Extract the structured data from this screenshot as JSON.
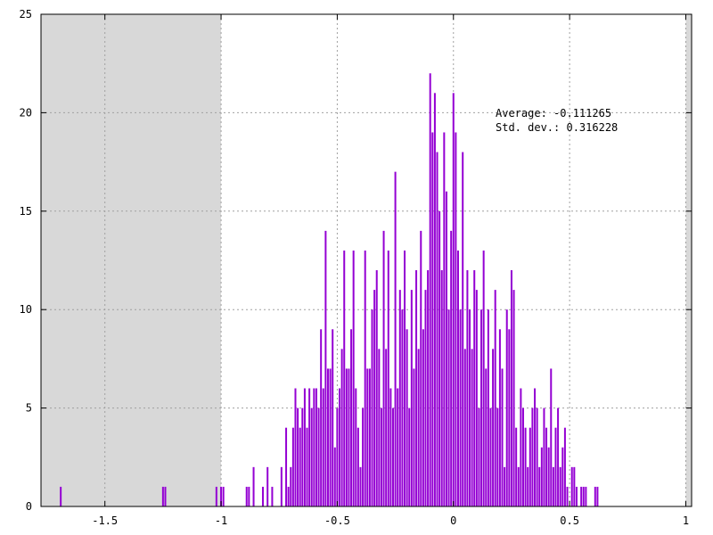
{
  "chart_data": {
    "type": "bar",
    "title": "",
    "xlabel": "",
    "ylabel": "",
    "xlim": [
      -1.775,
      1.025
    ],
    "ylim": [
      0,
      25
    ],
    "x_ticks": [
      -1.5,
      -1,
      -0.5,
      0,
      0.5,
      1
    ],
    "x_tick_labels": [
      "-1.5",
      "-1",
      "-0.5",
      "0",
      "0.5",
      "1"
    ],
    "y_ticks": [
      0,
      5,
      10,
      15,
      20,
      25
    ],
    "y_tick_labels": [
      "0",
      "5",
      "10",
      "15",
      "20",
      "25"
    ],
    "grid": true,
    "bin_width": 0.01,
    "shaded_ranges": [
      [
        -1.775,
        -1.0
      ],
      [
        1.0,
        1.025
      ]
    ],
    "shade_color": "#d8d8d8",
    "bar_color": "#9400d3",
    "annotations": [
      "Average: -0.111265",
      "Std. dev.: 0.316228"
    ],
    "bins": [
      {
        "x": -1.69,
        "y": 1
      },
      {
        "x": -1.25,
        "y": 1
      },
      {
        "x": -1.24,
        "y": 1
      },
      {
        "x": -1.02,
        "y": 1
      },
      {
        "x": -1.0,
        "y": 1
      },
      {
        "x": -0.99,
        "y": 1
      },
      {
        "x": -0.89,
        "y": 1
      },
      {
        "x": -0.88,
        "y": 1
      },
      {
        "x": -0.86,
        "y": 2
      },
      {
        "x": -0.82,
        "y": 1
      },
      {
        "x": -0.8,
        "y": 2
      },
      {
        "x": -0.78,
        "y": 1
      },
      {
        "x": -0.74,
        "y": 2
      },
      {
        "x": -0.72,
        "y": 4
      },
      {
        "x": -0.71,
        "y": 1
      },
      {
        "x": -0.7,
        "y": 2
      },
      {
        "x": -0.69,
        "y": 4
      },
      {
        "x": -0.68,
        "y": 6
      },
      {
        "x": -0.67,
        "y": 5
      },
      {
        "x": -0.66,
        "y": 4
      },
      {
        "x": -0.65,
        "y": 5
      },
      {
        "x": -0.64,
        "y": 6
      },
      {
        "x": -0.63,
        "y": 4
      },
      {
        "x": -0.62,
        "y": 6
      },
      {
        "x": -0.61,
        "y": 5
      },
      {
        "x": -0.6,
        "y": 6
      },
      {
        "x": -0.59,
        "y": 6
      },
      {
        "x": -0.58,
        "y": 5
      },
      {
        "x": -0.57,
        "y": 9
      },
      {
        "x": -0.56,
        "y": 6
      },
      {
        "x": -0.55,
        "y": 14
      },
      {
        "x": -0.54,
        "y": 7
      },
      {
        "x": -0.53,
        "y": 7
      },
      {
        "x": -0.52,
        "y": 9
      },
      {
        "x": -0.51,
        "y": 3
      },
      {
        "x": -0.5,
        "y": 5
      },
      {
        "x": -0.49,
        "y": 6
      },
      {
        "x": -0.48,
        "y": 8
      },
      {
        "x": -0.47,
        "y": 13
      },
      {
        "x": -0.46,
        "y": 7
      },
      {
        "x": -0.45,
        "y": 7
      },
      {
        "x": -0.44,
        "y": 9
      },
      {
        "x": -0.43,
        "y": 13
      },
      {
        "x": -0.42,
        "y": 6
      },
      {
        "x": -0.41,
        "y": 4
      },
      {
        "x": -0.4,
        "y": 2
      },
      {
        "x": -0.39,
        "y": 5
      },
      {
        "x": -0.38,
        "y": 13
      },
      {
        "x": -0.37,
        "y": 7
      },
      {
        "x": -0.36,
        "y": 7
      },
      {
        "x": -0.35,
        "y": 10
      },
      {
        "x": -0.34,
        "y": 11
      },
      {
        "x": -0.33,
        "y": 12
      },
      {
        "x": -0.32,
        "y": 8
      },
      {
        "x": -0.31,
        "y": 5
      },
      {
        "x": -0.3,
        "y": 14
      },
      {
        "x": -0.29,
        "y": 8
      },
      {
        "x": -0.28,
        "y": 13
      },
      {
        "x": -0.27,
        "y": 6
      },
      {
        "x": -0.26,
        "y": 5
      },
      {
        "x": -0.25,
        "y": 17
      },
      {
        "x": -0.24,
        "y": 6
      },
      {
        "x": -0.23,
        "y": 11
      },
      {
        "x": -0.22,
        "y": 10
      },
      {
        "x": -0.21,
        "y": 13
      },
      {
        "x": -0.2,
        "y": 9
      },
      {
        "x": -0.19,
        "y": 5
      },
      {
        "x": -0.18,
        "y": 11
      },
      {
        "x": -0.17,
        "y": 7
      },
      {
        "x": -0.16,
        "y": 12
      },
      {
        "x": -0.15,
        "y": 8
      },
      {
        "x": -0.14,
        "y": 14
      },
      {
        "x": -0.13,
        "y": 9
      },
      {
        "x": -0.12,
        "y": 11
      },
      {
        "x": -0.11,
        "y": 12
      },
      {
        "x": -0.1,
        "y": 22
      },
      {
        "x": -0.09,
        "y": 19
      },
      {
        "x": -0.08,
        "y": 21
      },
      {
        "x": -0.07,
        "y": 18
      },
      {
        "x": -0.06,
        "y": 15
      },
      {
        "x": -0.05,
        "y": 12
      },
      {
        "x": -0.04,
        "y": 19
      },
      {
        "x": -0.03,
        "y": 16
      },
      {
        "x": -0.02,
        "y": 10
      },
      {
        "x": -0.01,
        "y": 14
      },
      {
        "x": 0.0,
        "y": 21
      },
      {
        "x": 0.01,
        "y": 19
      },
      {
        "x": 0.02,
        "y": 13
      },
      {
        "x": 0.03,
        "y": 10
      },
      {
        "x": 0.04,
        "y": 18
      },
      {
        "x": 0.05,
        "y": 8
      },
      {
        "x": 0.06,
        "y": 12
      },
      {
        "x": 0.07,
        "y": 10
      },
      {
        "x": 0.08,
        "y": 8
      },
      {
        "x": 0.09,
        "y": 12
      },
      {
        "x": 0.1,
        "y": 11
      },
      {
        "x": 0.11,
        "y": 5
      },
      {
        "x": 0.12,
        "y": 10
      },
      {
        "x": 0.13,
        "y": 13
      },
      {
        "x": 0.14,
        "y": 7
      },
      {
        "x": 0.15,
        "y": 10
      },
      {
        "x": 0.16,
        "y": 5
      },
      {
        "x": 0.17,
        "y": 8
      },
      {
        "x": 0.18,
        "y": 11
      },
      {
        "x": 0.19,
        "y": 5
      },
      {
        "x": 0.2,
        "y": 9
      },
      {
        "x": 0.21,
        "y": 7
      },
      {
        "x": 0.22,
        "y": 2
      },
      {
        "x": 0.23,
        "y": 10
      },
      {
        "x": 0.24,
        "y": 9
      },
      {
        "x": 0.25,
        "y": 12
      },
      {
        "x": 0.26,
        "y": 11
      },
      {
        "x": 0.27,
        "y": 4
      },
      {
        "x": 0.28,
        "y": 2
      },
      {
        "x": 0.29,
        "y": 6
      },
      {
        "x": 0.3,
        "y": 5
      },
      {
        "x": 0.31,
        "y": 4
      },
      {
        "x": 0.32,
        "y": 2
      },
      {
        "x": 0.33,
        "y": 4
      },
      {
        "x": 0.34,
        "y": 5
      },
      {
        "x": 0.35,
        "y": 6
      },
      {
        "x": 0.36,
        "y": 5
      },
      {
        "x": 0.37,
        "y": 2
      },
      {
        "x": 0.38,
        "y": 3
      },
      {
        "x": 0.39,
        "y": 5
      },
      {
        "x": 0.4,
        "y": 4
      },
      {
        "x": 0.41,
        "y": 3
      },
      {
        "x": 0.42,
        "y": 7
      },
      {
        "x": 0.43,
        "y": 2
      },
      {
        "x": 0.44,
        "y": 4
      },
      {
        "x": 0.45,
        "y": 5
      },
      {
        "x": 0.46,
        "y": 2
      },
      {
        "x": 0.47,
        "y": 3
      },
      {
        "x": 0.48,
        "y": 4
      },
      {
        "x": 0.49,
        "y": 1
      },
      {
        "x": 0.51,
        "y": 2
      },
      {
        "x": 0.52,
        "y": 2
      },
      {
        "x": 0.53,
        "y": 1
      },
      {
        "x": 0.55,
        "y": 1
      },
      {
        "x": 0.56,
        "y": 1
      },
      {
        "x": 0.57,
        "y": 1
      },
      {
        "x": 0.61,
        "y": 1
      },
      {
        "x": 0.62,
        "y": 1
      }
    ]
  }
}
